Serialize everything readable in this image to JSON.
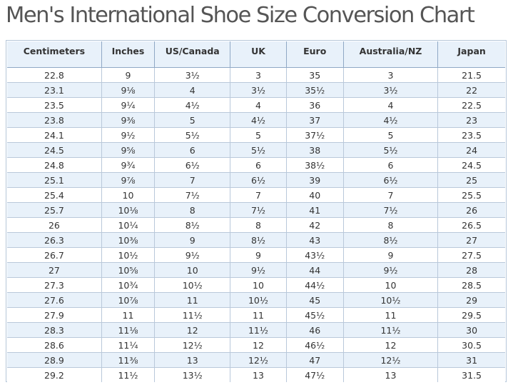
{
  "title": "Men's International Shoe Size Conversion Chart",
  "table": {
    "headers": [
      "Centimeters",
      "Inches",
      "US/Canada",
      "UK",
      "Euro",
      "Australia/NZ",
      "Japan"
    ],
    "rows": [
      [
        "22.8",
        "9",
        "3½",
        "3",
        "35",
        "3",
        "21.5"
      ],
      [
        "23.1",
        "9⅛",
        "4",
        "3½",
        "35½",
        "3½",
        "22"
      ],
      [
        "23.5",
        "9¼",
        "4½",
        "4",
        "36",
        "4",
        "22.5"
      ],
      [
        "23.8",
        "9⅜",
        "5",
        "4½",
        "37",
        "4½",
        "23"
      ],
      [
        "24.1",
        "9½",
        "5½",
        "5",
        "37½",
        "5",
        "23.5"
      ],
      [
        "24.5",
        "9⅝",
        "6",
        "5½",
        "38",
        "5½",
        "24"
      ],
      [
        "24.8",
        "9¾",
        "6½",
        "6",
        "38½",
        "6",
        "24.5"
      ],
      [
        "25.1",
        "9⅞",
        "7",
        "6½",
        "39",
        "6½",
        "25"
      ],
      [
        "25.4",
        "10",
        "7½",
        "7",
        "40",
        "7",
        "25.5"
      ],
      [
        "25.7",
        "10⅛",
        "8",
        "7½",
        "41",
        "7½",
        "26"
      ],
      [
        "26",
        "10¼",
        "8½",
        "8",
        "42",
        "8",
        "26.5"
      ],
      [
        "26.3",
        "10⅜",
        "9",
        "8½",
        "43",
        "8½",
        "27"
      ],
      [
        "26.7",
        "10½",
        "9½",
        "9",
        "43½",
        "9",
        "27.5"
      ],
      [
        "27",
        "10⅝",
        "10",
        "9½",
        "44",
        "9½",
        "28"
      ],
      [
        "27.3",
        "10¾",
        "10½",
        "10",
        "44½",
        "10",
        "28.5"
      ],
      [
        "27.6",
        "10⅞",
        "11",
        "10½",
        "45",
        "10½",
        "29"
      ],
      [
        "27.9",
        "11",
        "11½",
        "11",
        "45½",
        "11",
        "29.5"
      ],
      [
        "28.3",
        "11⅛",
        "12",
        "11½",
        "46",
        "11½",
        "30"
      ],
      [
        "28.6",
        "11¼",
        "12½",
        "12",
        "46½",
        "12",
        "30.5"
      ],
      [
        "28.9",
        "11⅜",
        "13",
        "12½",
        "47",
        "12½",
        "31"
      ],
      [
        "29.2",
        "11½",
        "13½",
        "13",
        "47½",
        "13",
        "31.5"
      ]
    ]
  }
}
